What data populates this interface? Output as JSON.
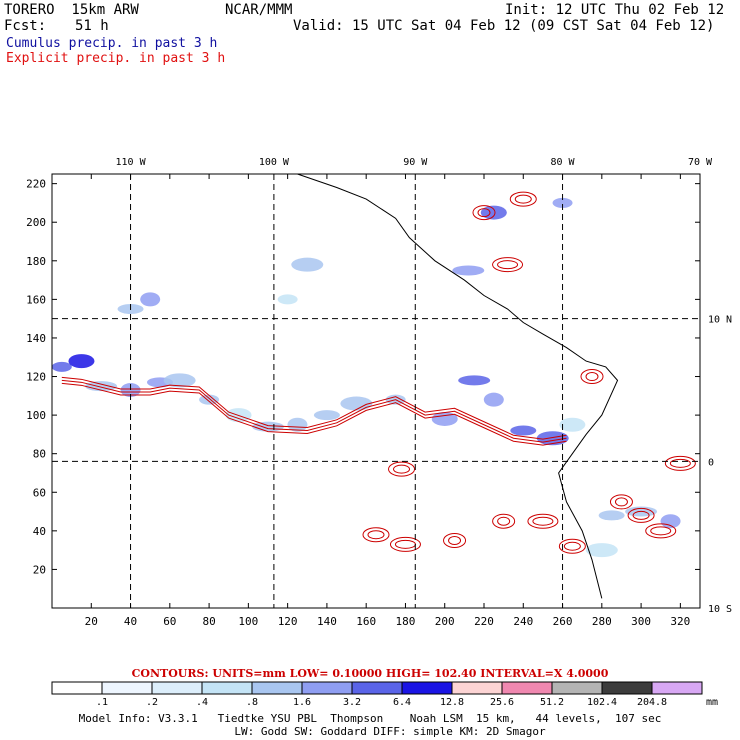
{
  "header": {
    "model": "TORERO  15km ARW",
    "org": "NCAR/MMM",
    "init": "Init: 12 UTC Thu 02 Feb 12",
    "fcst_label": "Fcst:",
    "fcst_value": "51 h",
    "valid": "Valid: 15 UTC Sat 04 Feb 12 (09 CST Sat 04 Feb 12)"
  },
  "fields": {
    "cumulus": "Cumulus precip. in past 3 h",
    "explicit": "Explicit precip. in past 3 h"
  },
  "colors": {
    "cumulus_text": "#1010a0",
    "explicit_text": "#e01010",
    "contour": "#cc0000",
    "coast": "#000000"
  },
  "chart_data": {
    "type": "heatmap",
    "title": "Cumulus and explicit precip. in past 3 h",
    "x_grid_ticks": [
      20,
      40,
      60,
      80,
      100,
      120,
      140,
      160,
      180,
      200,
      220,
      240,
      260,
      280,
      300,
      320
    ],
    "y_grid_ticks": [
      20,
      40,
      60,
      80,
      100,
      120,
      140,
      160,
      180,
      200,
      220
    ],
    "xlim": [
      0,
      330
    ],
    "ylim": [
      0,
      225
    ],
    "lon_labels": [
      {
        "text": "110 W",
        "x": 40
      },
      {
        "text": "100 W",
        "x": 113
      },
      {
        "text": "90 W",
        "x": 185
      },
      {
        "text": "80 W",
        "x": 260
      },
      {
        "text": "70 W",
        "x": 330
      }
    ],
    "lat_labels": [
      {
        "text": "10 N",
        "y": 150
      },
      {
        "text": "0",
        "y": 76
      },
      {
        "text": "10 S",
        "y": 0
      }
    ],
    "meridian_lines_x": [
      40,
      113,
      185,
      260
    ],
    "parallel_lines_y": [
      150,
      76
    ],
    "contours": {
      "units": "mm",
      "label": "CONTOURS:  UNITS=mm  LOW= 0.10000      HIGH=  102.40      INTERVAL=X  4.0000",
      "low": 0.1,
      "high": 102.4,
      "interval_factor": 4.0
    },
    "colorbar": {
      "unit": "mm",
      "bounds": [
        "",
        ".1",
        ".2",
        ".4",
        ".8",
        "1.6",
        "3.2",
        "6.4",
        "12.8",
        "25.6",
        "51.2",
        "102.4",
        "204.8",
        ""
      ],
      "colors": [
        "#ffffff",
        "#eef6ff",
        "#dceefb",
        "#c4e4f6",
        "#a9c6f0",
        "#8f9ef2",
        "#5a64e8",
        "#1a14e4",
        "#fcd4d4",
        "#f088b0",
        "#b4b4b4",
        "#3c3c3c",
        "#d8a8f4"
      ]
    },
    "cumulus_band": [
      {
        "x": 5,
        "y": 125,
        "level": 6
      },
      {
        "x": 15,
        "y": 128,
        "level": 7
      },
      {
        "x": 25,
        "y": 115,
        "level": 4
      },
      {
        "x": 40,
        "y": 113,
        "level": 5
      },
      {
        "x": 55,
        "y": 117,
        "level": 5
      },
      {
        "x": 65,
        "y": 118,
        "level": 4
      },
      {
        "x": 80,
        "y": 108,
        "level": 4
      },
      {
        "x": 95,
        "y": 100,
        "level": 3
      },
      {
        "x": 110,
        "y": 94,
        "level": 4
      },
      {
        "x": 125,
        "y": 95,
        "level": 4
      },
      {
        "x": 140,
        "y": 100,
        "level": 4
      },
      {
        "x": 155,
        "y": 106,
        "level": 4
      },
      {
        "x": 175,
        "y": 108,
        "level": 4
      },
      {
        "x": 200,
        "y": 98,
        "level": 5
      },
      {
        "x": 215,
        "y": 118,
        "level": 6
      },
      {
        "x": 225,
        "y": 108,
        "level": 5
      },
      {
        "x": 240,
        "y": 92,
        "level": 6
      },
      {
        "x": 255,
        "y": 88,
        "level": 6
      },
      {
        "x": 260,
        "y": 210,
        "level": 5
      },
      {
        "x": 225,
        "y": 205,
        "level": 6
      },
      {
        "x": 212,
        "y": 175,
        "level": 5
      },
      {
        "x": 50,
        "y": 160,
        "level": 5
      },
      {
        "x": 40,
        "y": 155,
        "level": 4
      },
      {
        "x": 130,
        "y": 178,
        "level": 4
      },
      {
        "x": 120,
        "y": 160,
        "level": 3
      },
      {
        "x": 265,
        "y": 95,
        "level": 3
      },
      {
        "x": 300,
        "y": 50,
        "level": 4
      },
      {
        "x": 315,
        "y": 45,
        "level": 5
      },
      {
        "x": 285,
        "y": 48,
        "level": 4
      },
      {
        "x": 280,
        "y": 30,
        "level": 3
      }
    ],
    "explicit_band": [
      {
        "x": 5,
        "y": 118
      },
      {
        "x": 15,
        "y": 117
      },
      {
        "x": 35,
        "y": 112
      },
      {
        "x": 50,
        "y": 112
      },
      {
        "x": 60,
        "y": 114
      },
      {
        "x": 75,
        "y": 113
      },
      {
        "x": 90,
        "y": 100
      },
      {
        "x": 110,
        "y": 93
      },
      {
        "x": 130,
        "y": 92
      },
      {
        "x": 145,
        "y": 96
      },
      {
        "x": 160,
        "y": 104
      },
      {
        "x": 175,
        "y": 108
      },
      {
        "x": 190,
        "y": 100
      },
      {
        "x": 205,
        "y": 102
      },
      {
        "x": 220,
        "y": 95
      },
      {
        "x": 235,
        "y": 88
      },
      {
        "x": 250,
        "y": 86
      },
      {
        "x": 262,
        "y": 88
      }
    ],
    "explicit_cells": [
      {
        "x": 220,
        "y": 205
      },
      {
        "x": 240,
        "y": 212
      },
      {
        "x": 232,
        "y": 178
      },
      {
        "x": 275,
        "y": 120
      },
      {
        "x": 300,
        "y": 48
      },
      {
        "x": 310,
        "y": 40
      },
      {
        "x": 290,
        "y": 55
      },
      {
        "x": 265,
        "y": 32
      },
      {
        "x": 250,
        "y": 45
      },
      {
        "x": 230,
        "y": 45
      },
      {
        "x": 165,
        "y": 38
      },
      {
        "x": 180,
        "y": 33
      },
      {
        "x": 205,
        "y": 35
      },
      {
        "x": 178,
        "y": 72
      },
      {
        "x": 320,
        "y": 75
      }
    ],
    "coastline": [
      {
        "x": 125,
        "y": 225
      },
      {
        "x": 145,
        "y": 218
      },
      {
        "x": 160,
        "y": 212
      },
      {
        "x": 175,
        "y": 202
      },
      {
        "x": 182,
        "y": 192
      },
      {
        "x": 195,
        "y": 180
      },
      {
        "x": 210,
        "y": 170
      },
      {
        "x": 220,
        "y": 162
      },
      {
        "x": 232,
        "y": 155
      },
      {
        "x": 240,
        "y": 148
      },
      {
        "x": 250,
        "y": 142
      },
      {
        "x": 262,
        "y": 135
      },
      {
        "x": 272,
        "y": 128
      },
      {
        "x": 282,
        "y": 125
      },
      {
        "x": 288,
        "y": 118
      },
      {
        "x": 280,
        "y": 100
      },
      {
        "x": 272,
        "y": 90
      },
      {
        "x": 265,
        "y": 80
      },
      {
        "x": 258,
        "y": 70
      },
      {
        "x": 262,
        "y": 55
      },
      {
        "x": 270,
        "y": 40
      },
      {
        "x": 275,
        "y": 25
      },
      {
        "x": 280,
        "y": 5
      }
    ],
    "xlabel": "",
    "ylabel": ""
  },
  "footer": {
    "line1": "Model Info: V3.3.1   Tiedtke YSU PBL  Thompson    Noah LSM  15 km,   44 levels,  107 sec",
    "line2": "LW: Godd SW: Goddard DIFF: simple KM: 2D Smagor"
  }
}
